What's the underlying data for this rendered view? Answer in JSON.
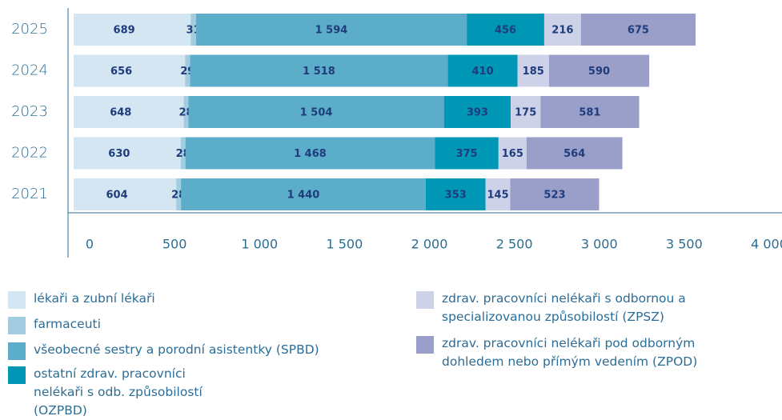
{
  "chart_data": {
    "type": "stacked-bar-horizontal",
    "categories": [
      "2025",
      "2024",
      "2023",
      "2022",
      "2021"
    ],
    "series": [
      {
        "name": "lékaři a zubní lékaři",
        "color": "#d3e6f1",
        "values": [
          689,
          656,
          648,
          630,
          604
        ]
      },
      {
        "name": "farmaceuti",
        "color": "#a3cce0",
        "values": [
          31,
          29,
          28,
          28,
          28
        ]
      },
      {
        "name": "všeobecné sestry a porodní asistentky (SPBD)",
        "color": "#5badc9",
        "values": [
          1594,
          1518,
          1504,
          1468,
          1440
        ],
        "value_labels": [
          "1 594",
          "1 518",
          "1 504",
          "1 468",
          "1 440"
        ]
      },
      {
        "name": "ostatní zdrav. pracovníci nelékaři s odb. způsobilostí (OZPBD)",
        "color": "#0096b6",
        "values": [
          456,
          410,
          393,
          375,
          353
        ]
      },
      {
        "name": "zdrav. pracovníci nelékaři s odbornou a specializovanou způsobilostí (ZPSZ)",
        "color": "#cdd2e8",
        "values": [
          216,
          185,
          175,
          165,
          145
        ]
      },
      {
        "name": "zdrav. pracovníci nelékaři pod odborným dohledem nebo přímým vedením (ZPOD)",
        "color": "#9a9fc9",
        "values": [
          675,
          590,
          581,
          564,
          523
        ]
      }
    ],
    "xlim": [
      0,
      4000
    ],
    "xticks": [
      0,
      500,
      {
        "value": 1000,
        "label": "1 000"
      },
      {
        "value": 1500,
        "label": "1 500"
      },
      {
        "value": 2000,
        "label": "2 000"
      },
      {
        "value": 2500,
        "label": "2 500"
      },
      {
        "value": 3000,
        "label": "3 000"
      },
      {
        "value": 3500,
        "label": "3 500"
      },
      {
        "value": 4000,
        "label": "4 000"
      }
    ]
  }
}
